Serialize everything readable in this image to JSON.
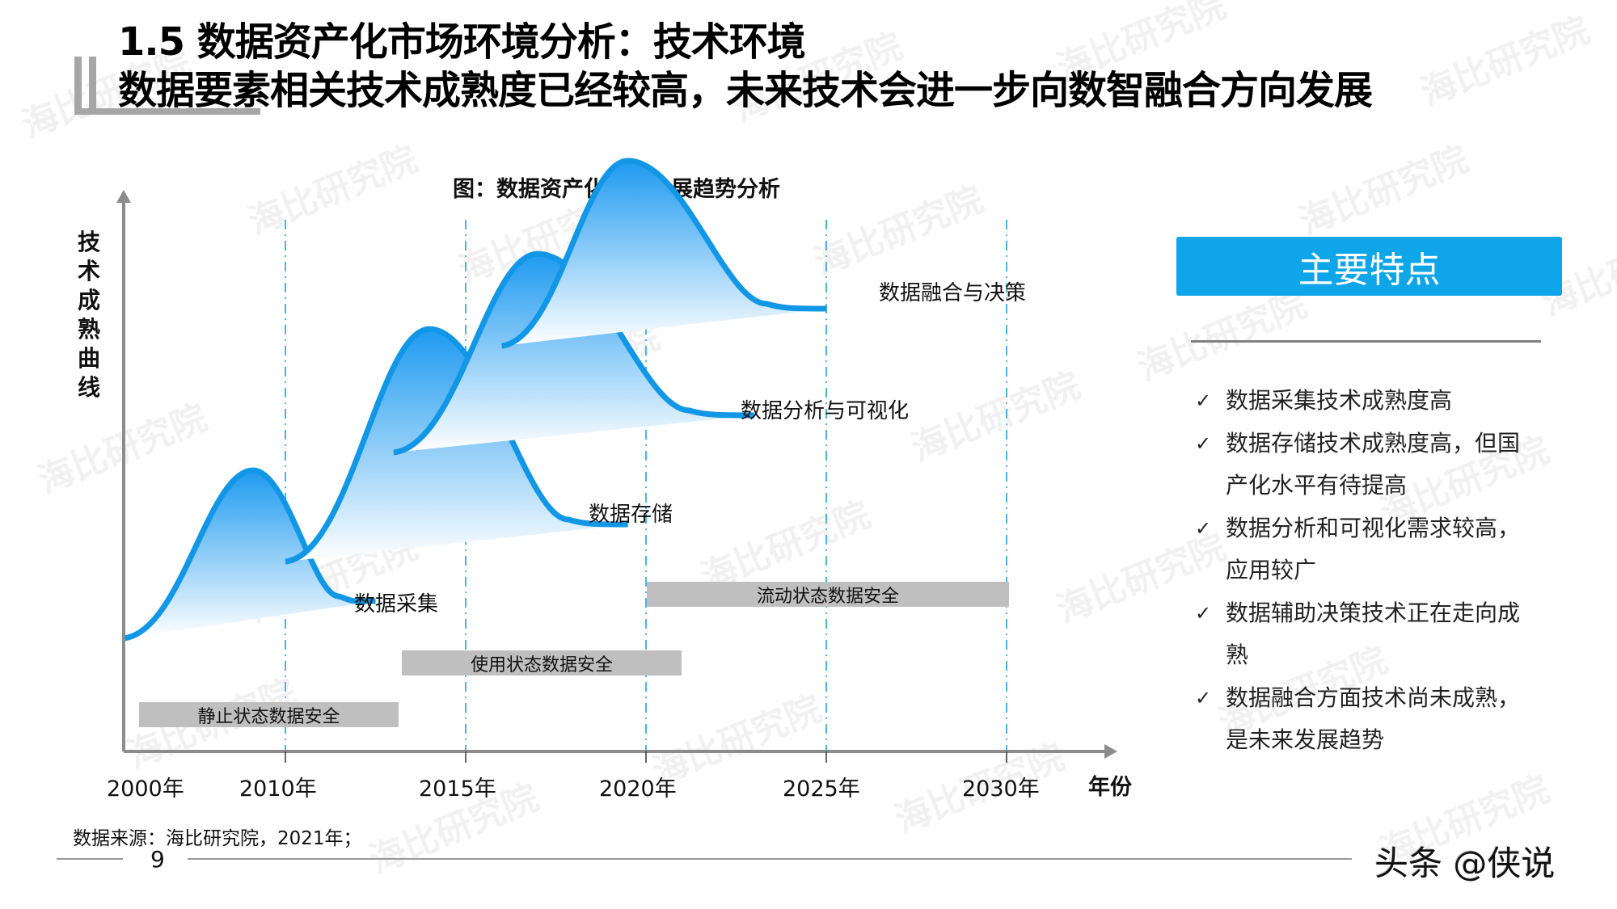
{
  "header": {
    "title_line1": "1.5 数据资产化市场环境分析：技术环境",
    "title_line2": "数据要素相关技术成熟度已经较高，未来技术会进一步向数智融合方向发展"
  },
  "chart_data": {
    "type": "area",
    "title": "图：数据资产化技术发展趋势分析",
    "ylabel": "技术成熟曲线",
    "xlabel": "年份",
    "x_ticks": [
      "2000年",
      "2010年",
      "2015年",
      "2020年",
      "2025年",
      "2030年"
    ],
    "series": [
      {
        "name": "数据采集",
        "start_year": 2000,
        "peak_year": 2008,
        "end_year": 2012.5
      },
      {
        "name": "数据存储",
        "start_year": 2010,
        "peak_year": 2014,
        "end_year": 2019.5
      },
      {
        "name": "数据分析与可视化",
        "start_year": 2013,
        "peak_year": 2017,
        "end_year": 2023
      },
      {
        "name": "数据融合与决策",
        "start_year": 2016,
        "peak_year": 2019.5,
        "end_year": 2025
      }
    ],
    "security_bars": [
      {
        "label": "静止状态数据安全",
        "start_year": 2000.5,
        "end_year": 2013
      },
      {
        "label": "使用状态数据安全",
        "start_year": 2013,
        "end_year": 2021
      },
      {
        "label": "流动状态数据安全",
        "start_year": 2020,
        "end_year": 2030
      }
    ],
    "colors": {
      "curve": "#1296e6",
      "fill_top": "#1e9af0",
      "fill_bottom": "#ffffff",
      "grid": "#4fb3e0",
      "axis": "#8c8c8c",
      "bar": "#bfbfbf"
    }
  },
  "panel": {
    "heading": "主要特点",
    "heading_color": "#0ea5e9",
    "points": [
      {
        "lines": [
          "数据采集技术成熟度高"
        ]
      },
      {
        "lines": [
          "数据存储技术成熟度高，但国",
          "产化水平有待提高"
        ]
      },
      {
        "lines": [
          "数据分析和可视化需求较高，",
          "应用较广"
        ]
      },
      {
        "lines": [
          "数据辅助决策技术正在走向成",
          "熟"
        ]
      },
      {
        "lines": [
          "数据融合方面技术尚未成熟，",
          "是未来发展趋势"
        ]
      }
    ],
    "check_icon": "✓"
  },
  "footer": {
    "source": "数据来源：海比研究院，2021年；",
    "page_number": "9",
    "credit": "头条 @侠说"
  },
  "watermark": {
    "text": "海比研究院"
  }
}
